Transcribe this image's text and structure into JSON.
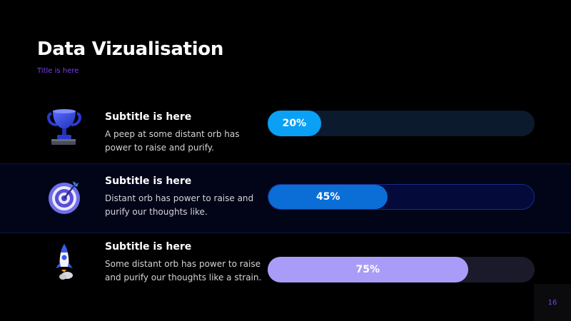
{
  "slide": {
    "title": "Data Vizualisation",
    "subtitle": "Title is here",
    "page_number": "16"
  },
  "rows": [
    {
      "icon": "trophy-icon",
      "title": "Subtitle is here",
      "description": "A peep at some distant orb has power to raise and purify.",
      "percent_label": "20%",
      "progress": 0.2,
      "fill_color": "#0aa0f5",
      "track_color": "#0b1a2c"
    },
    {
      "icon": "target-icon",
      "title": "Subtitle is here",
      "description": "Distant orb has power to raise and purify our thoughts like.",
      "percent_label": "45%",
      "progress": 0.45,
      "fill_color": "#0a6ed6",
      "track_color": "#040a3a"
    },
    {
      "icon": "rocket-icon",
      "title": "Subtitle is here",
      "description": "Some distant orb has power to raise and purify our thoughts like a strain.",
      "percent_label": "75%",
      "progress": 0.75,
      "fill_color": "#a99cf9",
      "track_color": "#1b1a2a"
    }
  ],
  "colors": {
    "background": "#000000",
    "accent": "#7b3ff2",
    "highlight_row": "#020418"
  }
}
